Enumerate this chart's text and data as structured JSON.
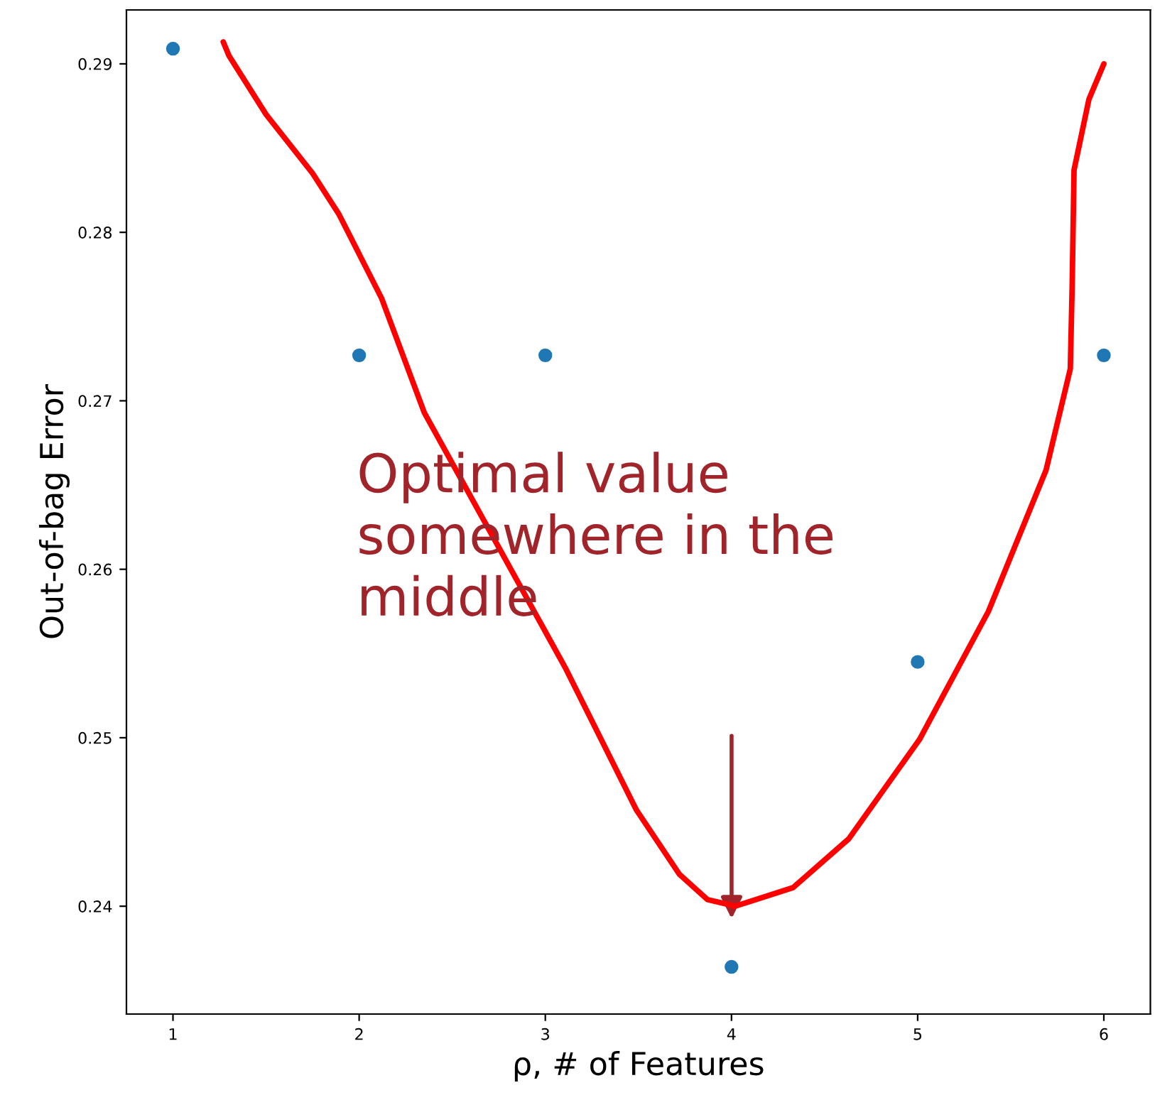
{
  "chart_data": {
    "type": "scatter",
    "xlabel": "ρ, # of Features",
    "ylabel": "Out-of-bag Error",
    "x": [
      1,
      2,
      3,
      4,
      5,
      6
    ],
    "series": [
      {
        "color": "#1f77b4",
        "marker": "circle",
        "values": [
          0.2909,
          0.2727,
          0.2727,
          0.2364,
          0.2545,
          0.2727
        ]
      },
      {
        "type": "line",
        "color": "#ff0000",
        "x": [
          1.27,
          1.3,
          1.5,
          1.75,
          1.89,
          2.12,
          2.35,
          2.73,
          3.11,
          3.49,
          3.72,
          3.87,
          4.02,
          4.33,
          4.63,
          5.01,
          5.38,
          5.69,
          5.82,
          5.83,
          5.84,
          5.92,
          6.0
        ],
        "values": [
          0.2913,
          0.2905,
          0.287,
          0.2835,
          0.2811,
          0.2761,
          0.2693,
          0.2617,
          0.2541,
          0.2457,
          0.2419,
          0.2404,
          0.24,
          0.2411,
          0.244,
          0.2499,
          0.2575,
          0.2659,
          0.2719,
          0.2769,
          0.2837,
          0.2879,
          0.29
        ]
      }
    ],
    "annotations": [
      "Optimal value\nsomewhere in the\nmiddle"
    ],
    "xlim": [
      0.75,
      6.25
    ],
    "ylim": [
      0.2336,
      0.2932
    ],
    "xticks": [
      1,
      2,
      3,
      4,
      5,
      6
    ],
    "yticks": [
      {
        "value": 0.24,
        "label": "0.24"
      },
      {
        "value": 0.25,
        "label": "0.25"
      },
      {
        "value": 0.26,
        "label": "0.26"
      },
      {
        "value": 0.27,
        "label": "0.27"
      },
      {
        "value": 0.28,
        "label": "0.28"
      },
      {
        "value": 0.29,
        "label": "0.29"
      }
    ],
    "grid": false
  }
}
